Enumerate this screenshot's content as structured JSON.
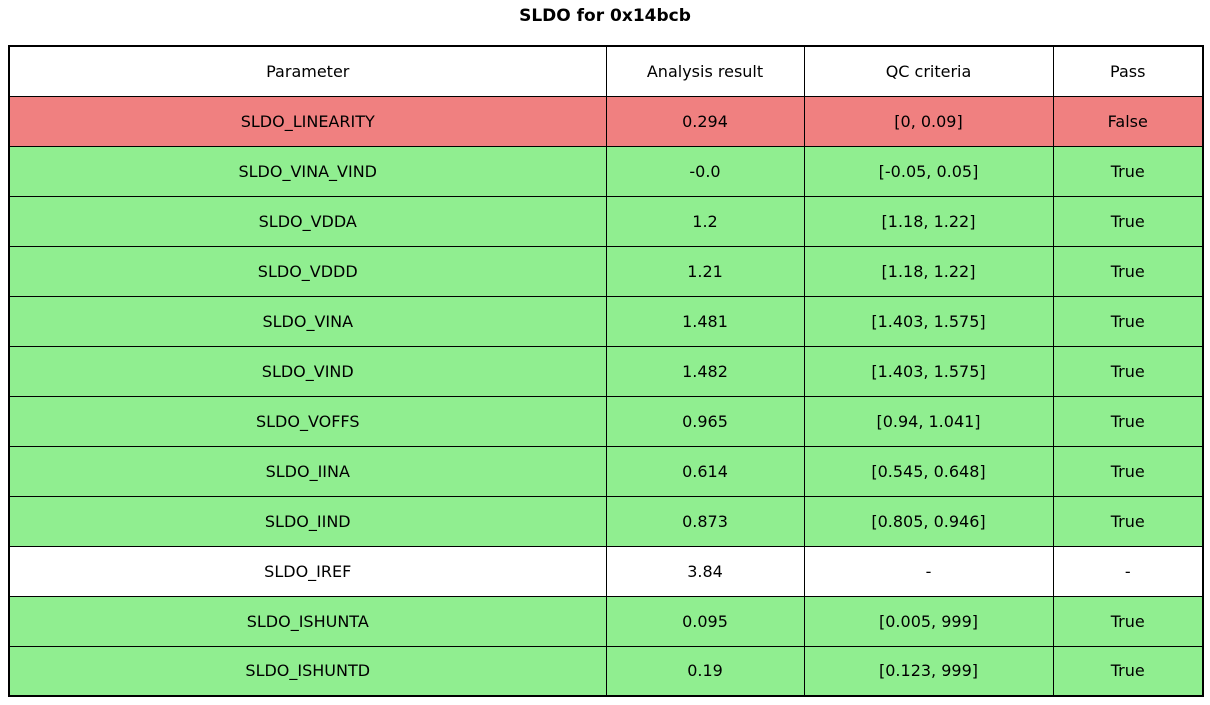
{
  "title": "SLDO for 0x14bcb",
  "chart_data": {
    "type": "table",
    "title": "SLDO for 0x14bcb",
    "columns": [
      "Parameter",
      "Analysis result",
      "QC criteria",
      "Pass"
    ],
    "rows": [
      {
        "parameter": "SLDO_LINEARITY",
        "result": "0.294",
        "criteria": "[0, 0.09]",
        "pass": "False",
        "status": "fail"
      },
      {
        "parameter": "SLDO_VINA_VIND",
        "result": "-0.0",
        "criteria": "[-0.05, 0.05]",
        "pass": "True",
        "status": "pass"
      },
      {
        "parameter": "SLDO_VDDA",
        "result": "1.2",
        "criteria": "[1.18, 1.22]",
        "pass": "True",
        "status": "pass"
      },
      {
        "parameter": "SLDO_VDDD",
        "result": "1.21",
        "criteria": "[1.18, 1.22]",
        "pass": "True",
        "status": "pass"
      },
      {
        "parameter": "SLDO_VINA",
        "result": "1.481",
        "criteria": "[1.403, 1.575]",
        "pass": "True",
        "status": "pass"
      },
      {
        "parameter": "SLDO_VIND",
        "result": "1.482",
        "criteria": "[1.403, 1.575]",
        "pass": "True",
        "status": "pass"
      },
      {
        "parameter": "SLDO_VOFFS",
        "result": "0.965",
        "criteria": "[0.94, 1.041]",
        "pass": "True",
        "status": "pass"
      },
      {
        "parameter": "SLDO_IINA",
        "result": "0.614",
        "criteria": "[0.545, 0.648]",
        "pass": "True",
        "status": "pass"
      },
      {
        "parameter": "SLDO_IIND",
        "result": "0.873",
        "criteria": "[0.805, 0.946]",
        "pass": "True",
        "status": "pass"
      },
      {
        "parameter": "SLDO_IREF",
        "result": "3.84",
        "criteria": "-",
        "pass": "-",
        "status": "none"
      },
      {
        "parameter": "SLDO_ISHUNTA",
        "result": "0.095",
        "criteria": "[0.005, 999]",
        "pass": "True",
        "status": "pass"
      },
      {
        "parameter": "SLDO_ISHUNTD",
        "result": "0.19",
        "criteria": "[0.123, 999]",
        "pass": "True",
        "status": "pass"
      }
    ]
  },
  "colors": {
    "pass_row": "#90ee90",
    "fail_row": "#f08080",
    "neutral_row": "#ffffff",
    "border": "#000000",
    "text": "#000000"
  }
}
